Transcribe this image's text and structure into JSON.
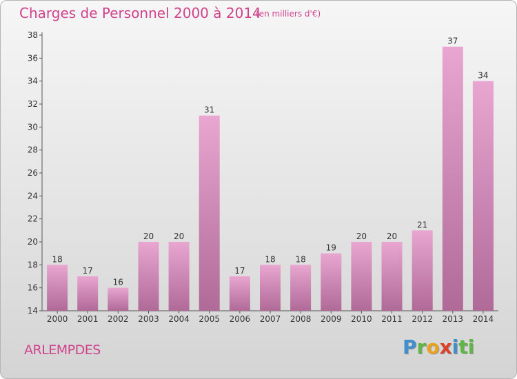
{
  "header": {
    "title": "Charges de Personnel 2000 à 2014",
    "subtitle": "(en milliers d'€)"
  },
  "footer": {
    "commune": "ARLEMPDES",
    "logo_text": "Proxiti"
  },
  "colors": {
    "title": "#d0428c",
    "bar_top": "#e8a6d0",
    "bar_bottom": "#b06a98",
    "axis": "#555555"
  },
  "chart_data": {
    "type": "bar",
    "title": "Charges de Personnel 2000 à 2014",
    "subtitle": "(en milliers d'€)",
    "categories": [
      "2000",
      "2001",
      "2002",
      "2003",
      "2004",
      "2005",
      "2006",
      "2007",
      "2008",
      "2009",
      "2010",
      "2011",
      "2012",
      "2013",
      "2014"
    ],
    "values": [
      18,
      17,
      16,
      20,
      20,
      31,
      17,
      18,
      18,
      19,
      20,
      20,
      21,
      37,
      34
    ],
    "ylim": [
      14,
      38
    ],
    "yticks": [
      14,
      16,
      18,
      20,
      22,
      24,
      26,
      28,
      30,
      32,
      34,
      36,
      38
    ],
    "grid": false,
    "legend": "none"
  }
}
